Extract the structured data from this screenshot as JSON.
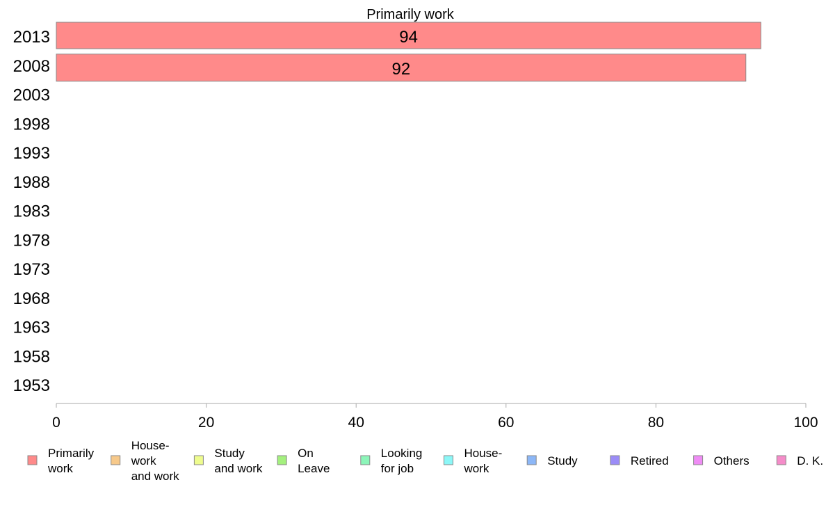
{
  "chart_data": {
    "type": "bar",
    "orientation": "horizontal",
    "title": "Primarily work",
    "categories": [
      "2013",
      "2008",
      "2003",
      "1998",
      "1993",
      "1988",
      "1983",
      "1978",
      "1973",
      "1968",
      "1963",
      "1958",
      "1953"
    ],
    "series": [
      {
        "name": "Primarily work",
        "color": "#ff8a8a",
        "values": [
          94,
          92,
          null,
          null,
          null,
          null,
          null,
          null,
          null,
          null,
          null,
          null,
          null
        ],
        "labels": [
          "94",
          "92"
        ]
      }
    ],
    "xlim": [
      0,
      100
    ],
    "xticks": [
      "0",
      "20",
      "40",
      "60",
      "80",
      "100"
    ],
    "grid": false,
    "legend_position": "bottom",
    "legend": [
      {
        "lines": [
          "Primarily",
          "work"
        ],
        "color": "#ff8a8a"
      },
      {
        "lines": [
          "House-",
          "work",
          "and work"
        ],
        "color": "#f7c98a"
      },
      {
        "lines": [
          "Study",
          "and work"
        ],
        "color": "#eefc8e"
      },
      {
        "lines": [
          "On",
          "Leave"
        ],
        "color": "#a4f07e"
      },
      {
        "lines": [
          "Looking",
          "for job"
        ],
        "color": "#8cf5b9"
      },
      {
        "lines": [
          "House-",
          "work"
        ],
        "color": "#8cf7f7"
      },
      {
        "lines": [
          "Study"
        ],
        "color": "#8cb7f7"
      },
      {
        "lines": [
          "Retired"
        ],
        "color": "#9b8cf7"
      },
      {
        "lines": [
          "Others"
        ],
        "color": "#ef8cf5"
      },
      {
        "lines": [
          "D. K."
        ],
        "color": "#f58cc9"
      }
    ]
  }
}
